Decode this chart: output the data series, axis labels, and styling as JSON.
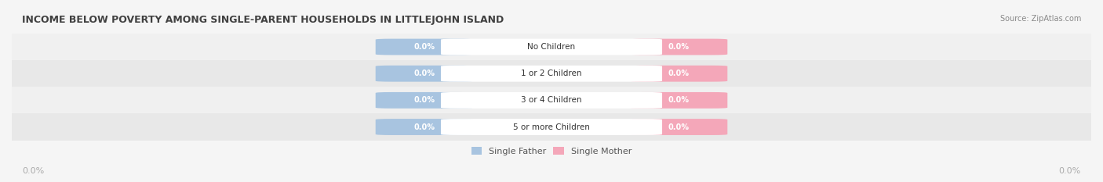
{
  "title": "INCOME BELOW POVERTY AMONG SINGLE-PARENT HOUSEHOLDS IN LITTLEJOHN ISLAND",
  "source": "Source: ZipAtlas.com",
  "categories": [
    "No Children",
    "1 or 2 Children",
    "3 or 4 Children",
    "5 or more Children"
  ],
  "father_values": [
    0.0,
    0.0,
    0.0,
    0.0
  ],
  "mother_values": [
    0.0,
    0.0,
    0.0,
    0.0
  ],
  "father_color": "#a8c4e0",
  "mother_color": "#f4a7b9",
  "bar_bg_color": "#e8e8e8",
  "row_bg_colors": [
    "#f0f0f0",
    "#e8e8e8"
  ],
  "label_color_father": "#7aadd4",
  "label_color_mother": "#f08ca8",
  "center_label_bg": "#ffffff",
  "axis_label_color": "#888888",
  "title_color": "#404040",
  "legend_father_color": "#a8c4e0",
  "legend_mother_color": "#f4a7b9",
  "x_axis_label_left": "0.0%",
  "x_axis_label_right": "0.0%",
  "figsize": [
    14.06,
    2.33
  ],
  "dpi": 100
}
